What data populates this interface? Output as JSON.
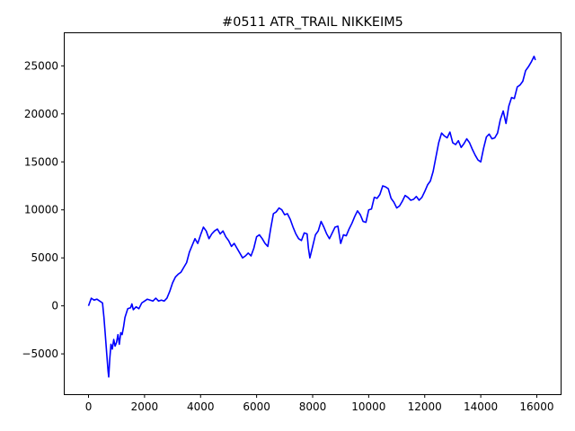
{
  "chart_data": {
    "type": "line",
    "title": "#0511 ATR_TRAIL NIKKEIM5",
    "xlabel": "",
    "ylabel": "",
    "xlim": [
      -850,
      16850
    ],
    "ylim": [
      -9200,
      28400
    ],
    "xticks": [
      0,
      2000,
      4000,
      6000,
      8000,
      10000,
      12000,
      14000,
      16000
    ],
    "yticks": [
      -5000,
      0,
      5000,
      10000,
      15000,
      20000,
      25000
    ],
    "xtick_labels": [
      "0",
      "2000",
      "4000",
      "6000",
      "8000",
      "10000",
      "12000",
      "14000",
      "16000"
    ],
    "ytick_labels": [
      "−5000",
      "0",
      "5000",
      "10000",
      "15000",
      "20000",
      "25000"
    ],
    "grid": false,
    "legend": "none",
    "series": [
      {
        "color": "#0000ff",
        "x": [
          0,
          100,
          200,
          300,
          400,
          500,
          550,
          600,
          650,
          700,
          720,
          760,
          800,
          850,
          900,
          950,
          1000,
          1050,
          1100,
          1150,
          1200,
          1250,
          1300,
          1400,
          1500,
          1550,
          1600,
          1700,
          1800,
          1900,
          2000,
          2100,
          2200,
          2300,
          2400,
          2500,
          2600,
          2700,
          2800,
          2900,
          3000,
          3100,
          3200,
          3300,
          3400,
          3500,
          3600,
          3700,
          3800,
          3900,
          4000,
          4100,
          4200,
          4300,
          4400,
          4500,
          4600,
          4700,
          4800,
          4900,
          5000,
          5100,
          5200,
          5300,
          5400,
          5500,
          5600,
          5700,
          5800,
          5900,
          6000,
          6100,
          6200,
          6300,
          6400,
          6500,
          6600,
          6700,
          6800,
          6900,
          7000,
          7100,
          7200,
          7300,
          7400,
          7500,
          7600,
          7700,
          7800,
          7850,
          7900,
          8000,
          8100,
          8200,
          8300,
          8400,
          8500,
          8600,
          8700,
          8800,
          8900,
          9000,
          9100,
          9200,
          9300,
          9400,
          9500,
          9600,
          9700,
          9800,
          9900,
          10000,
          10100,
          10200,
          10300,
          10400,
          10500,
          10600,
          10700,
          10800,
          10900,
          11000,
          11100,
          11200,
          11300,
          11400,
          11500,
          11600,
          11700,
          11800,
          11900,
          12000,
          12100,
          12200,
          12300,
          12400,
          12500,
          12600,
          12700,
          12800,
          12900,
          13000,
          13100,
          13200,
          13300,
          13400,
          13500,
          13600,
          13700,
          13800,
          13900,
          14000,
          14100,
          14200,
          14300,
          14400,
          14500,
          14600,
          14700,
          14800,
          14900,
          15000,
          15100,
          15200,
          15300,
          15400,
          15500,
          15600,
          15700,
          15800,
          15900,
          15950
        ],
        "y": [
          0,
          800,
          600,
          700,
          500,
          300,
          -1200,
          -3000,
          -5000,
          -6800,
          -7400,
          -5500,
          -4000,
          -4500,
          -3500,
          -4200,
          -3800,
          -3000,
          -4000,
          -2800,
          -3000,
          -2200,
          -1200,
          -300,
          -200,
          200,
          -400,
          -100,
          -300,
          300,
          500,
          700,
          600,
          500,
          800,
          500,
          600,
          500,
          800,
          1500,
          2400,
          3000,
          3300,
          3500,
          4000,
          4500,
          5600,
          6300,
          7000,
          6500,
          7400,
          8200,
          7800,
          7000,
          7500,
          7800,
          8000,
          7500,
          7800,
          7200,
          6800,
          6200,
          6500,
          6000,
          5500,
          5000,
          5200,
          5500,
          5200,
          6000,
          7200,
          7400,
          7000,
          6500,
          6200,
          8000,
          9600,
          9800,
          10200,
          10000,
          9500,
          9600,
          9000,
          8200,
          7500,
          7000,
          6800,
          7600,
          7500,
          6000,
          5000,
          6200,
          7400,
          7800,
          8800,
          8200,
          7500,
          7000,
          7600,
          8200,
          8300,
          6500,
          7400,
          7300,
          8000,
          8600,
          9300,
          9900,
          9500,
          8800,
          8700,
          10000,
          10100,
          11300,
          11200,
          11600,
          12500,
          12400,
          12200,
          11200,
          10800,
          10200,
          10400,
          10900,
          11500,
          11300,
          11000,
          11100,
          11400,
          11000,
          11300,
          11900,
          12600,
          13000,
          14000,
          15500,
          17000,
          18000,
          17700,
          17500,
          18100,
          17000,
          16800,
          17200,
          16500,
          16900,
          17400,
          17000,
          16300,
          15700,
          15200,
          15000,
          16400,
          17600,
          17900,
          17400,
          17500,
          18000,
          19400,
          20300,
          19000,
          20800,
          21700,
          21600,
          22800,
          23000,
          23400,
          24500,
          24900,
          25400,
          26000,
          25600
        ]
      }
    ]
  }
}
